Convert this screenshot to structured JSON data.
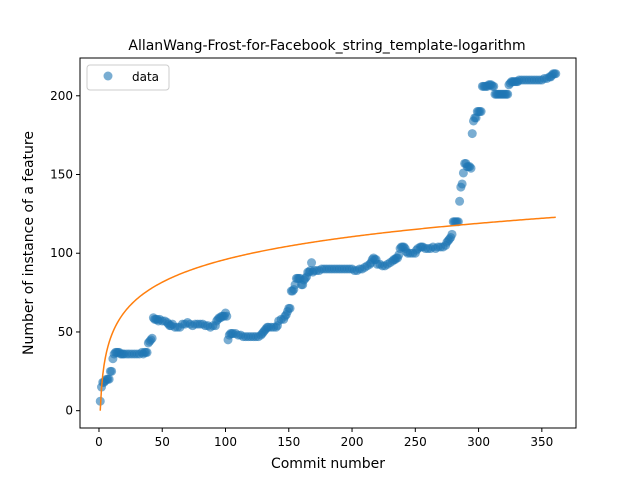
{
  "chart_data": {
    "type": "scatter",
    "title": "AllanWang-Frost-for-Facebook_string_template-logarithm",
    "xlabel": "Commit number",
    "ylabel": "Number of instance of a feature",
    "xlim": [
      -15,
      377
    ],
    "ylim": [
      -11,
      224
    ],
    "xticks": [
      0,
      50,
      100,
      150,
      200,
      250,
      300,
      350
    ],
    "yticks": [
      0,
      50,
      100,
      150,
      200
    ],
    "grid": false,
    "legend": {
      "placement": "upper left",
      "entries": [
        "data"
      ]
    },
    "colors": {
      "data": "#1f77b4",
      "fit": "#ff7f0e"
    },
    "series": [
      {
        "name": "data",
        "type": "scatter",
        "points": [
          [
            1,
            6
          ],
          [
            2,
            15
          ],
          [
            3,
            18
          ],
          [
            4,
            18
          ],
          [
            5,
            19
          ],
          [
            6,
            20
          ],
          [
            7,
            20
          ],
          [
            8,
            20
          ],
          [
            9,
            25
          ],
          [
            10,
            25
          ],
          [
            11,
            33
          ],
          [
            12,
            36
          ],
          [
            13,
            37
          ],
          [
            14,
            37
          ],
          [
            15,
            37
          ],
          [
            16,
            37
          ],
          [
            17,
            36
          ],
          [
            18,
            36
          ],
          [
            19,
            36
          ],
          [
            20,
            36
          ],
          [
            22,
            36
          ],
          [
            24,
            36
          ],
          [
            26,
            36
          ],
          [
            28,
            36
          ],
          [
            30,
            36
          ],
          [
            32,
            36
          ],
          [
            34,
            37
          ],
          [
            35,
            36
          ],
          [
            36,
            37
          ],
          [
            37,
            37
          ],
          [
            38,
            37
          ],
          [
            39,
            43
          ],
          [
            40,
            44
          ],
          [
            41,
            45
          ],
          [
            42,
            46
          ],
          [
            43,
            59
          ],
          [
            44,
            58
          ],
          [
            45,
            58
          ],
          [
            46,
            58
          ],
          [
            47,
            57
          ],
          [
            48,
            58
          ],
          [
            50,
            57
          ],
          [
            52,
            57
          ],
          [
            54,
            56
          ],
          [
            55,
            55
          ],
          [
            56,
            54
          ],
          [
            57,
            54
          ],
          [
            58,
            55
          ],
          [
            60,
            53
          ],
          [
            62,
            53
          ],
          [
            64,
            53
          ],
          [
            66,
            55
          ],
          [
            68,
            55
          ],
          [
            70,
            56
          ],
          [
            72,
            55
          ],
          [
            74,
            54
          ],
          [
            76,
            55
          ],
          [
            78,
            55
          ],
          [
            80,
            55
          ],
          [
            82,
            55
          ],
          [
            84,
            54
          ],
          [
            86,
            54
          ],
          [
            88,
            53
          ],
          [
            90,
            54
          ],
          [
            92,
            54
          ],
          [
            93,
            57
          ],
          [
            94,
            58
          ],
          [
            95,
            59
          ],
          [
            96,
            59
          ],
          [
            97,
            60
          ],
          [
            98,
            60
          ],
          [
            99,
            60
          ],
          [
            100,
            62
          ],
          [
            101,
            60
          ],
          [
            102,
            45
          ],
          [
            103,
            48
          ],
          [
            104,
            49
          ],
          [
            105,
            49
          ],
          [
            106,
            49
          ],
          [
            108,
            49
          ],
          [
            110,
            48
          ],
          [
            112,
            48
          ],
          [
            114,
            47
          ],
          [
            116,
            47
          ],
          [
            118,
            47
          ],
          [
            120,
            47
          ],
          [
            122,
            47
          ],
          [
            124,
            47
          ],
          [
            126,
            47
          ],
          [
            128,
            48
          ],
          [
            129,
            49
          ],
          [
            130,
            50
          ],
          [
            131,
            51
          ],
          [
            132,
            52
          ],
          [
            133,
            53
          ],
          [
            134,
            53
          ],
          [
            136,
            53
          ],
          [
            138,
            53
          ],
          [
            140,
            53
          ],
          [
            141,
            54
          ],
          [
            142,
            57
          ],
          [
            144,
            58
          ],
          [
            146,
            58
          ],
          [
            147,
            60
          ],
          [
            148,
            61
          ],
          [
            149,
            63
          ],
          [
            150,
            65
          ],
          [
            151,
            65
          ],
          [
            152,
            76
          ],
          [
            153,
            76
          ],
          [
            154,
            77
          ],
          [
            155,
            80
          ],
          [
            156,
            84
          ],
          [
            157,
            84
          ],
          [
            158,
            84
          ],
          [
            159,
            84
          ],
          [
            160,
            80
          ],
          [
            161,
            80
          ],
          [
            162,
            83
          ],
          [
            163,
            84
          ],
          [
            164,
            85
          ],
          [
            165,
            88
          ],
          [
            166,
            88
          ],
          [
            167,
            89
          ],
          [
            168,
            94
          ],
          [
            169,
            88
          ],
          [
            170,
            89
          ],
          [
            172,
            89
          ],
          [
            174,
            89
          ],
          [
            176,
            90
          ],
          [
            178,
            90
          ],
          [
            180,
            90
          ],
          [
            182,
            90
          ],
          [
            184,
            90
          ],
          [
            186,
            90
          ],
          [
            188,
            90
          ],
          [
            190,
            90
          ],
          [
            192,
            90
          ],
          [
            194,
            90
          ],
          [
            196,
            90
          ],
          [
            198,
            90
          ],
          [
            200,
            90
          ],
          [
            202,
            89
          ],
          [
            204,
            89
          ],
          [
            206,
            90
          ],
          [
            208,
            90
          ],
          [
            210,
            91
          ],
          [
            212,
            92
          ],
          [
            214,
            93
          ],
          [
            215,
            94
          ],
          [
            216,
            96
          ],
          [
            217,
            97
          ],
          [
            218,
            96
          ],
          [
            219,
            96
          ],
          [
            220,
            93
          ],
          [
            222,
            93
          ],
          [
            224,
            92
          ],
          [
            226,
            92
          ],
          [
            228,
            93
          ],
          [
            230,
            94
          ],
          [
            232,
            95
          ],
          [
            233,
            96
          ],
          [
            234,
            96
          ],
          [
            235,
            97
          ],
          [
            236,
            97
          ],
          [
            237,
            99
          ],
          [
            238,
            103
          ],
          [
            239,
            104
          ],
          [
            240,
            104
          ],
          [
            241,
            104
          ],
          [
            242,
            103
          ],
          [
            243,
            101
          ],
          [
            244,
            100
          ],
          [
            246,
            100
          ],
          [
            248,
            100
          ],
          [
            250,
            100
          ],
          [
            251,
            102
          ],
          [
            252,
            103
          ],
          [
            254,
            104
          ],
          [
            255,
            104
          ],
          [
            256,
            104
          ],
          [
            258,
            103
          ],
          [
            260,
            103
          ],
          [
            262,
            103
          ],
          [
            264,
            104
          ],
          [
            266,
            103
          ],
          [
            268,
            104
          ],
          [
            270,
            104
          ],
          [
            272,
            104
          ],
          [
            274,
            105
          ],
          [
            275,
            107
          ],
          [
            276,
            108
          ],
          [
            277,
            109
          ],
          [
            278,
            110
          ],
          [
            279,
            112
          ],
          [
            280,
            120
          ],
          [
            281,
            120
          ],
          [
            282,
            120
          ],
          [
            283,
            120
          ],
          [
            284,
            120
          ],
          [
            285,
            133
          ],
          [
            286,
            142
          ],
          [
            287,
            144
          ],
          [
            288,
            151
          ],
          [
            289,
            157
          ],
          [
            290,
            157
          ],
          [
            291,
            155
          ],
          [
            292,
            155
          ],
          [
            293,
            155
          ],
          [
            294,
            154
          ],
          [
            295,
            176
          ],
          [
            296,
            184
          ],
          [
            297,
            186
          ],
          [
            298,
            186
          ],
          [
            299,
            190
          ],
          [
            300,
            190
          ],
          [
            301,
            190
          ],
          [
            302,
            190
          ],
          [
            303,
            206
          ],
          [
            304,
            206
          ],
          [
            305,
            206
          ],
          [
            306,
            206
          ],
          [
            307,
            206
          ],
          [
            308,
            207
          ],
          [
            309,
            207
          ],
          [
            310,
            207
          ],
          [
            311,
            206
          ],
          [
            312,
            206
          ],
          [
            313,
            201
          ],
          [
            314,
            201
          ],
          [
            315,
            201
          ],
          [
            316,
            201
          ],
          [
            317,
            201
          ],
          [
            318,
            201
          ],
          [
            319,
            201
          ],
          [
            320,
            201
          ],
          [
            321,
            201
          ],
          [
            322,
            201
          ],
          [
            323,
            201
          ],
          [
            324,
            207
          ],
          [
            325,
            208
          ],
          [
            326,
            209
          ],
          [
            327,
            209
          ],
          [
            328,
            209
          ],
          [
            329,
            209
          ],
          [
            330,
            209
          ],
          [
            331,
            209
          ],
          [
            332,
            210
          ],
          [
            334,
            210
          ],
          [
            336,
            210
          ],
          [
            338,
            210
          ],
          [
            340,
            210
          ],
          [
            342,
            210
          ],
          [
            344,
            210
          ],
          [
            346,
            210
          ],
          [
            348,
            210
          ],
          [
            350,
            210
          ],
          [
            352,
            211
          ],
          [
            354,
            211
          ],
          [
            356,
            212
          ],
          [
            357,
            212
          ],
          [
            358,
            213
          ],
          [
            359,
            214
          ],
          [
            360,
            214
          ],
          [
            361,
            214
          ]
        ]
      },
      {
        "name": "",
        "type": "line",
        "function": "y = 20.86 * ln(x)",
        "x_range": [
          1,
          361
        ]
      }
    ]
  }
}
